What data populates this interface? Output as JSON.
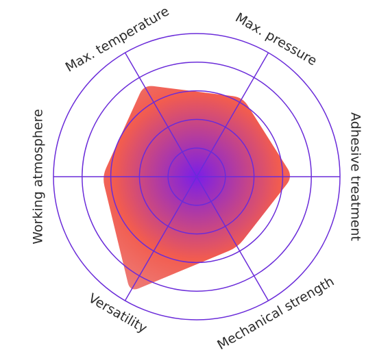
{
  "chart_data": {
    "type": "radar",
    "axes": [
      "Max. pressure",
      "Adhesive treatment",
      "Mechanical strength",
      "Versatility",
      "Working atmosphere",
      "Max. temperature"
    ],
    "series": [
      {
        "values": [
          0.64,
          0.67,
          0.57,
          0.93,
          0.66,
          0.74
        ]
      }
    ],
    "rlim": [
      0,
      1
    ],
    "grid_rings": 5,
    "colors": {
      "grid": "#6a2bd9",
      "fill_center": "#7a1ee8",
      "fill_mid": "#f25c4f",
      "fill_edge": "#ea8a8a",
      "label": "#2b2b2b"
    }
  }
}
